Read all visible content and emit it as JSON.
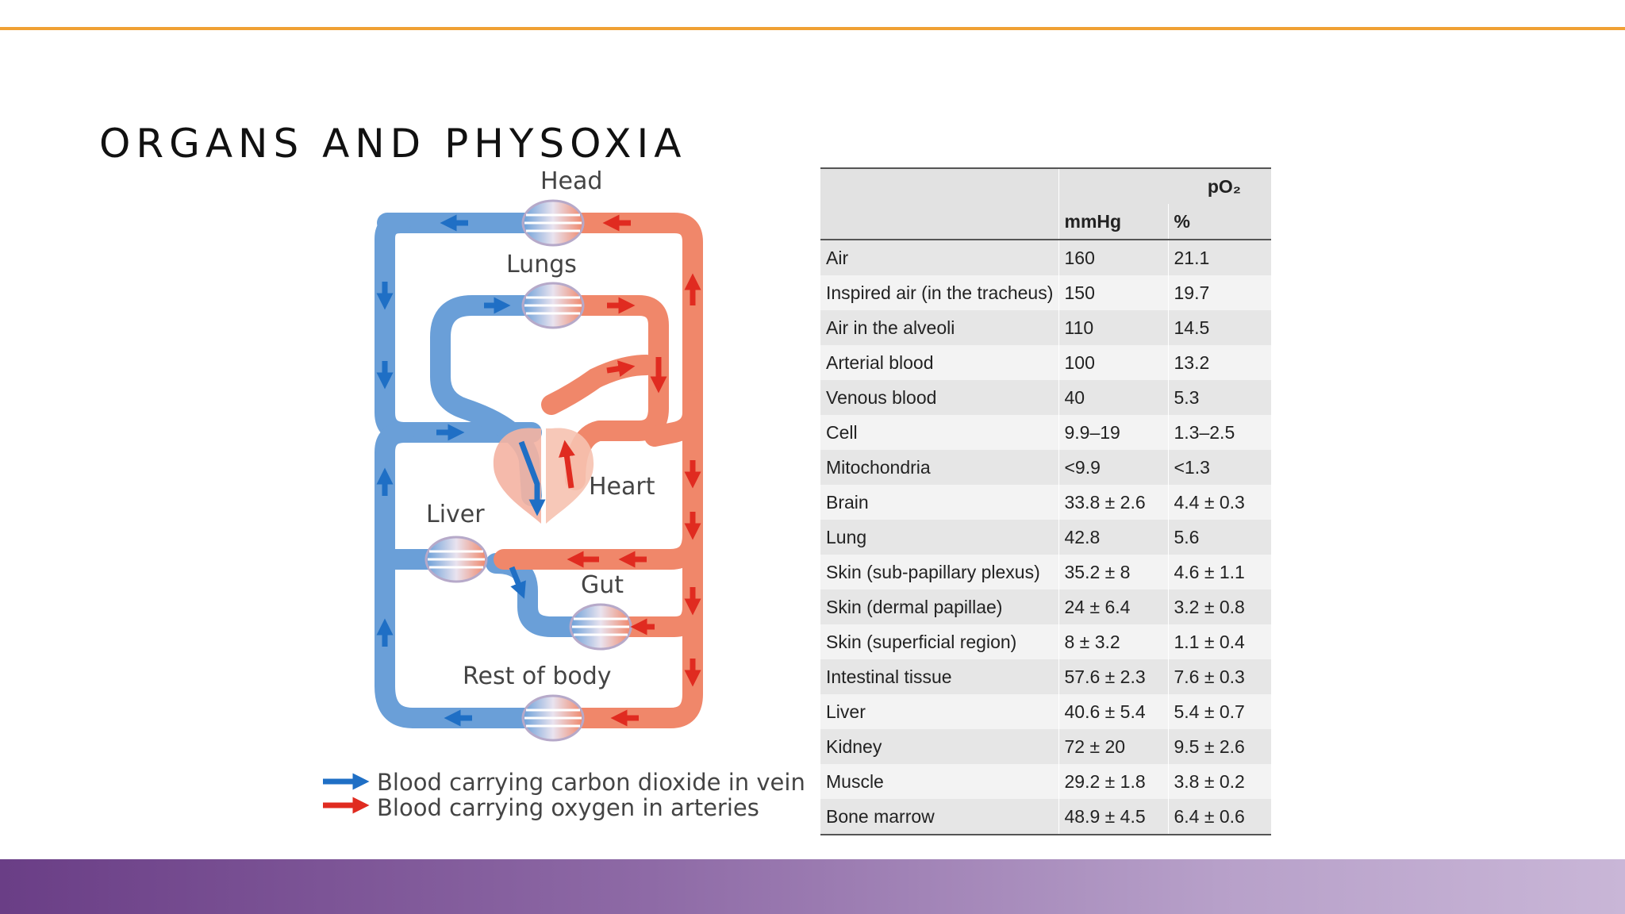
{
  "slide": {
    "title": "ORGANS AND PHYSOXIA",
    "accent_color": "#f0a033",
    "band_color_start": "#6a3e86",
    "band_color_end": "#c9b6d7"
  },
  "diagram": {
    "labels": {
      "head": "Head",
      "lungs": "Lungs",
      "heart": "Heart",
      "liver": "Liver",
      "gut": "Gut",
      "rest": "Rest of body"
    },
    "legend": {
      "veins": "Blood carrying carbon dioxide in veins",
      "arteries": "Blood carrying oxygen in arteries"
    },
    "colors": {
      "vein": "#6a9fd8",
      "vein_arrow": "#1f6fc5",
      "artery": "#f0876a",
      "artery_arrow": "#e02b20"
    }
  },
  "table": {
    "group_header": "pO₂",
    "col_mmhg": "mmHg",
    "col_pct": "%",
    "rows": [
      {
        "site": "Air",
        "mmhg": "160",
        "pct": "21.1"
      },
      {
        "site": "Inspired air (in the tracheus)",
        "mmhg": "150",
        "pct": "19.7"
      },
      {
        "site": "Air in the alveoli",
        "mmhg": "110",
        "pct": "14.5"
      },
      {
        "site": "Arterial blood",
        "mmhg": "100",
        "pct": "13.2"
      },
      {
        "site": "Venous blood",
        "mmhg": "40",
        "pct": "5.3"
      },
      {
        "site": "Cell",
        "mmhg": "9.9–19",
        "pct": "1.3–2.5"
      },
      {
        "site": "Mitochondria",
        "mmhg": "<9.9",
        "pct": "<1.3"
      },
      {
        "site": "Brain",
        "mmhg": "33.8 ± 2.6",
        "pct": "4.4 ± 0.3"
      },
      {
        "site": "Lung",
        "mmhg": "42.8",
        "pct": "5.6"
      },
      {
        "site": "Skin (sub-papillary plexus)",
        "mmhg": "35.2 ± 8",
        "pct": "4.6 ± 1.1"
      },
      {
        "site": "Skin (dermal papillae)",
        "mmhg": "24 ± 6.4",
        "pct": "3.2 ± 0.8"
      },
      {
        "site": "Skin (superficial region)",
        "mmhg": "8 ± 3.2",
        "pct": "1.1 ± 0.4"
      },
      {
        "site": "Intestinal tissue",
        "mmhg": "57.6 ± 2.3",
        "pct": "7.6 ± 0.3"
      },
      {
        "site": "Liver",
        "mmhg": "40.6 ± 5.4",
        "pct": "5.4 ± 0.7"
      },
      {
        "site": "Kidney",
        "mmhg": "72 ± 20",
        "pct": "9.5 ± 2.6"
      },
      {
        "site": "Muscle",
        "mmhg": "29.2 ± 1.8",
        "pct": "3.8 ± 0.2"
      },
      {
        "site": "Bone marrow",
        "mmhg": "48.9 ± 4.5",
        "pct": "6.4 ± 0.6"
      }
    ]
  }
}
